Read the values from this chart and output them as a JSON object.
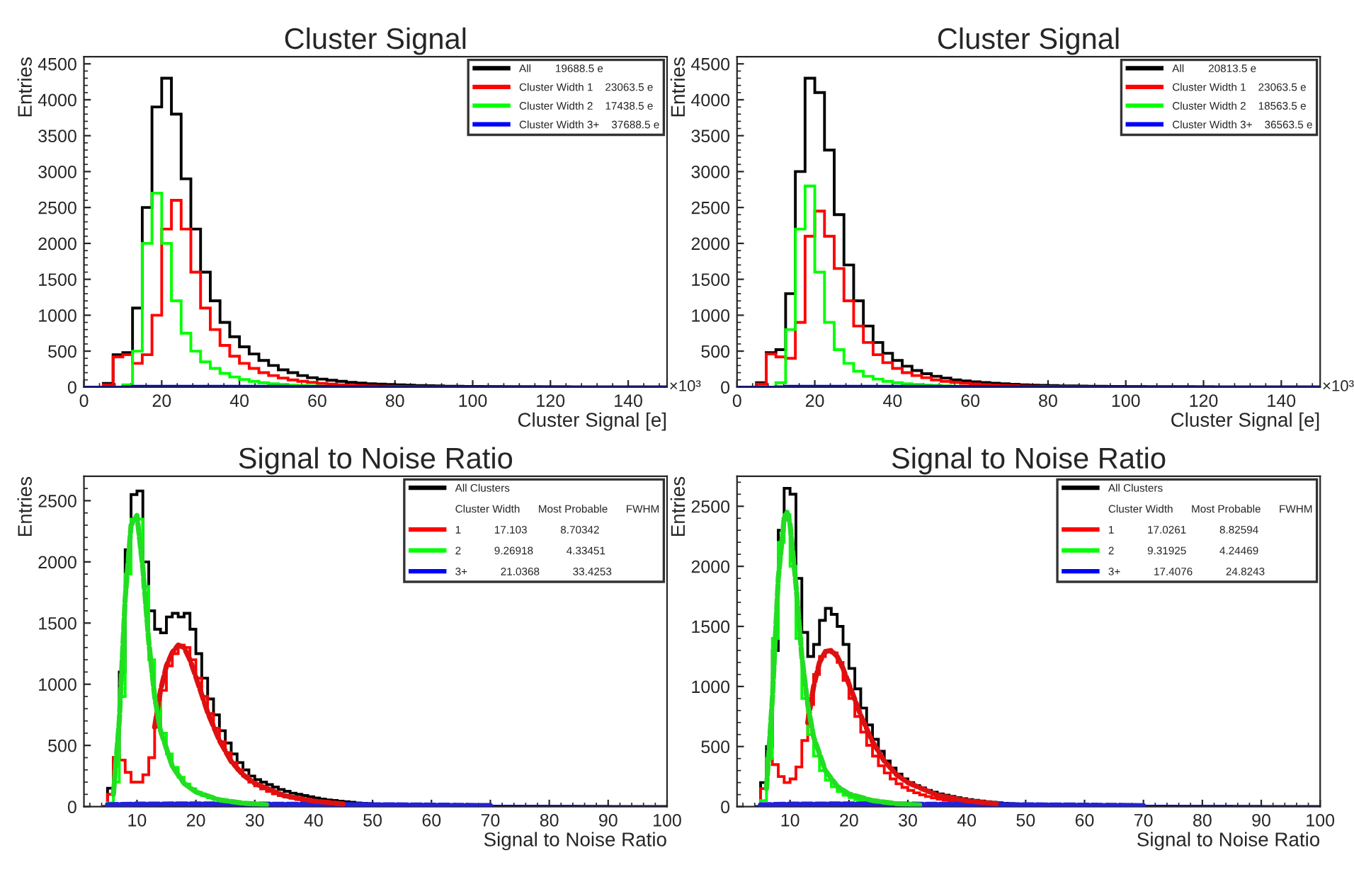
{
  "chart_data": [
    {
      "type": "histogram",
      "title": "Cluster Signal",
      "xlabel": "Cluster Signal [e]",
      "ylabel": "Entries",
      "annotations": [
        "×10³"
      ],
      "legend": "top right",
      "grid": false,
      "xlim": [
        0,
        150
      ],
      "xticks": [
        0,
        20,
        40,
        60,
        80,
        100,
        120,
        140
      ],
      "ylim": [
        0,
        4600
      ],
      "yticks": [
        0,
        500,
        1000,
        1500,
        2000,
        2500,
        3000,
        3500,
        4000,
        4500
      ],
      "bins": [
        0,
        2.5,
        5,
        7.5,
        10,
        12.5,
        15,
        17.5,
        20,
        22.5,
        25,
        27.5,
        30,
        32.5,
        35,
        37.5,
        40,
        42.5,
        45,
        47.5,
        50,
        52.5,
        55,
        57.5,
        60,
        62.5,
        65,
        67.5,
        70,
        72.5,
        75,
        77.5,
        80,
        82.5,
        85,
        87.5,
        90,
        92.5,
        95,
        97.5,
        100,
        102.5,
        105,
        107.5,
        110,
        112.5,
        115,
        117.5,
        120,
        122.5,
        125,
        127.5,
        130,
        132.5,
        135,
        137.5,
        140,
        142.5,
        145,
        147.5,
        150
      ],
      "series": [
        {
          "name": "All        19688.5 e",
          "color": "#000000",
          "values": [
            0,
            0,
            50,
            450,
            480,
            1100,
            2500,
            3900,
            4300,
            3800,
            2900,
            2200,
            1600,
            1200,
            900,
            700,
            560,
            460,
            370,
            300,
            240,
            200,
            160,
            130,
            110,
            95,
            80,
            65,
            55,
            45,
            40,
            35,
            30,
            25,
            20,
            18,
            15,
            12,
            10,
            9,
            8,
            7,
            6,
            5,
            5,
            4,
            4,
            3,
            3,
            3,
            2,
            2,
            2,
            2,
            1,
            1,
            1,
            1,
            1,
            1
          ]
        },
        {
          "name": "Cluster Width 1    23063.5 e",
          "color": "#ff0000",
          "values": [
            0,
            0,
            30,
            420,
            450,
            330,
            450,
            1000,
            2200,
            2600,
            2200,
            1600,
            1100,
            800,
            580,
            430,
            330,
            260,
            200,
            160,
            125,
            100,
            80,
            65,
            50,
            40,
            32,
            25,
            20,
            16,
            13,
            10,
            8,
            6,
            5,
            4,
            3,
            2,
            2,
            1,
            1,
            1,
            1,
            1,
            0,
            0,
            0,
            0,
            0,
            0,
            0,
            0,
            0,
            0,
            0,
            0,
            0,
            0,
            0,
            0
          ]
        },
        {
          "name": "Cluster Width 2    17438.5 e",
          "color": "#00ff00",
          "values": [
            0,
            0,
            0,
            0,
            30,
            500,
            2000,
            2700,
            2000,
            1200,
            750,
            500,
            350,
            260,
            190,
            140,
            105,
            80,
            60,
            45,
            35,
            26,
            20,
            15,
            12,
            9,
            7,
            5,
            4,
            3,
            2,
            2,
            1,
            1,
            1,
            0,
            0,
            0,
            0,
            0,
            0,
            0,
            0,
            0,
            0,
            0,
            0,
            0,
            0,
            0,
            0,
            0,
            0,
            0,
            0,
            0,
            0,
            0,
            0,
            0
          ]
        },
        {
          "name": "Cluster Width 3+    37688.5 e",
          "color": "#0000ff",
          "values": [
            0,
            0,
            0,
            0,
            5,
            10,
            12,
            12,
            12,
            12,
            12,
            12,
            12,
            12,
            12,
            12,
            11,
            11,
            10,
            10,
            10,
            9,
            9,
            8,
            8,
            8,
            7,
            7,
            6,
            6,
            6,
            5,
            5,
            5,
            5,
            4,
            4,
            4,
            4,
            4,
            3,
            3,
            3,
            3,
            3,
            3,
            3,
            2,
            2,
            2,
            2,
            2,
            2,
            2,
            2,
            2,
            2,
            2,
            2,
            2
          ]
        }
      ]
    },
    {
      "type": "histogram",
      "title": "Cluster Signal",
      "xlabel": "Cluster Signal [e]",
      "ylabel": "Entries",
      "annotations": [
        "×10³"
      ],
      "legend": "top right",
      "grid": false,
      "xlim": [
        0,
        150
      ],
      "xticks": [
        0,
        20,
        40,
        60,
        80,
        100,
        120,
        140
      ],
      "ylim": [
        0,
        4600
      ],
      "yticks": [
        0,
        500,
        1000,
        1500,
        2000,
        2500,
        3000,
        3500,
        4000,
        4500
      ],
      "bins": [
        0,
        2.5,
        5,
        7.5,
        10,
        12.5,
        15,
        17.5,
        20,
        22.5,
        25,
        27.5,
        30,
        32.5,
        35,
        37.5,
        40,
        42.5,
        45,
        47.5,
        50,
        52.5,
        55,
        57.5,
        60,
        62.5,
        65,
        67.5,
        70,
        72.5,
        75,
        77.5,
        80,
        82.5,
        85,
        87.5,
        90,
        92.5,
        95,
        97.5,
        100,
        102.5,
        105,
        107.5,
        110,
        112.5,
        115,
        117.5,
        120,
        122.5,
        125,
        127.5,
        130,
        132.5,
        135,
        137.5,
        140,
        142.5,
        145,
        147.5,
        150
      ],
      "series": [
        {
          "name": "All        20813.5 e",
          "color": "#000000",
          "values": [
            0,
            0,
            60,
            480,
            520,
            1300,
            3000,
            4300,
            4100,
            3300,
            2400,
            1700,
            1200,
            850,
            620,
            470,
            370,
            290,
            230,
            185,
            150,
            125,
            100,
            85,
            72,
            62,
            53,
            45,
            38,
            32,
            27,
            23,
            20,
            17,
            15,
            13,
            11,
            10,
            9,
            8,
            7,
            6,
            5,
            5,
            4,
            4,
            3,
            3,
            3,
            2,
            2,
            2,
            2,
            2,
            1,
            1,
            1,
            1,
            1,
            1
          ]
        },
        {
          "name": "Cluster Width 1    23063.5 e",
          "color": "#ff0000",
          "values": [
            0,
            0,
            40,
            460,
            420,
            400,
            900,
            2100,
            2450,
            2100,
            1650,
            1200,
            850,
            620,
            450,
            340,
            260,
            200,
            160,
            130,
            100,
            80,
            65,
            52,
            42,
            34,
            27,
            22,
            18,
            14,
            11,
            9,
            7,
            5,
            4,
            3,
            2,
            2,
            1,
            1,
            0,
            0,
            0,
            0,
            0,
            0,
            0,
            0,
            0,
            0,
            0,
            0,
            0,
            0,
            0,
            0,
            0,
            0,
            0,
            0
          ]
        },
        {
          "name": "Cluster Width 2    18563.5 e",
          "color": "#00ff00",
          "values": [
            0,
            0,
            0,
            0,
            60,
            800,
            2200,
            2800,
            1600,
            900,
            520,
            330,
            220,
            150,
            110,
            80,
            60,
            45,
            35,
            27,
            20,
            15,
            11,
            8,
            6,
            5,
            4,
            3,
            2,
            2,
            1,
            1,
            1,
            1,
            1,
            0,
            0,
            0,
            0,
            0,
            0,
            0,
            0,
            0,
            0,
            0,
            0,
            0,
            0,
            0,
            0,
            0,
            0,
            0,
            0,
            0,
            0,
            0,
            0,
            0
          ]
        },
        {
          "name": "Cluster Width 3+    36563.5 e",
          "color": "#0000ff",
          "values": [
            0,
            0,
            0,
            0,
            5,
            10,
            12,
            12,
            12,
            12,
            12,
            12,
            12,
            12,
            12,
            12,
            11,
            11,
            10,
            10,
            10,
            9,
            9,
            8,
            8,
            8,
            7,
            7,
            6,
            6,
            6,
            5,
            5,
            5,
            5,
            4,
            4,
            4,
            4,
            4,
            3,
            3,
            3,
            3,
            3,
            3,
            3,
            2,
            2,
            2,
            2,
            2,
            2,
            2,
            2,
            2,
            2,
            2,
            2,
            2
          ]
        }
      ]
    },
    {
      "type": "histogram",
      "title": "Signal to Noise Ratio",
      "xlabel": "Signal to Noise Ratio",
      "ylabel": "Entries",
      "legend_title": "Cluster Width      Most Probable      FWHM",
      "legend": "top right",
      "grid": false,
      "xlim": [
        1,
        100
      ],
      "xticks": [
        10,
        20,
        30,
        40,
        50,
        60,
        70,
        80,
        90,
        100
      ],
      "ylim": [
        0,
        2700
      ],
      "yticks": [
        0,
        500,
        1000,
        1500,
        2000,
        2500
      ],
      "bins": [
        4,
        5,
        6,
        7,
        8,
        9,
        10,
        11,
        12,
        13,
        14,
        15,
        16,
        17,
        18,
        19,
        20,
        21,
        22,
        23,
        24,
        25,
        26,
        27,
        28,
        29,
        30,
        31,
        32,
        33,
        34,
        35,
        36,
        37,
        38,
        39,
        40,
        41,
        42,
        43,
        44,
        45,
        46,
        47,
        48,
        49,
        50,
        55,
        60,
        65,
        70,
        75,
        80,
        85,
        90,
        95,
        100
      ],
      "series": [
        {
          "name": "All Clusters",
          "color": "#000000",
          "values": [
            0,
            150,
            400,
            1100,
            2100,
            2550,
            2580,
            2000,
            1600,
            1450,
            1420,
            1550,
            1580,
            1550,
            1580,
            1450,
            1250,
            1050,
            880,
            750,
            620,
            520,
            430,
            360,
            300,
            250,
            220,
            200,
            180,
            160,
            140,
            125,
            110,
            100,
            90,
            80,
            70,
            62,
            55,
            50,
            45,
            40,
            35,
            30,
            27,
            24,
            18,
            12,
            8,
            5,
            3,
            2,
            1,
            1,
            0,
            0
          ]
        },
        {
          "name": "1           17.103           8.70342",
          "color": "#ff0000",
          "values": [
            0,
            100,
            400,
            380,
            280,
            200,
            200,
            260,
            400,
            650,
            950,
            1150,
            1250,
            1320,
            1300,
            1200,
            1050,
            900,
            760,
            640,
            530,
            440,
            360,
            300,
            250,
            200,
            170,
            145,
            125,
            105,
            90,
            78,
            68,
            58,
            50,
            44,
            38,
            33,
            29,
            25,
            22,
            19,
            17,
            15,
            13,
            11,
            8,
            5,
            3,
            2,
            1,
            1,
            0,
            0,
            0,
            0
          ]
        },
        {
          "name": "2           9.26918           4.33451",
          "color": "#00ff00",
          "values": [
            0,
            30,
            200,
            900,
            1900,
            2350,
            2350,
            1800,
            1200,
            850,
            600,
            430,
            320,
            240,
            185,
            145,
            115,
            90,
            72,
            58,
            47,
            38,
            31,
            25,
            20,
            16,
            13,
            11,
            9,
            7,
            6,
            5,
            4,
            3,
            3,
            2,
            2,
            1,
            1,
            1,
            1,
            1,
            1,
            1,
            1,
            1,
            1,
            0,
            0,
            0,
            0,
            0,
            0,
            0,
            0,
            0
          ]
        },
        {
          "name": "3+           21.0368           33.4253",
          "color": "#0000ff",
          "values": [
            0,
            5,
            15,
            18,
            20,
            20,
            20,
            20,
            20,
            20,
            20,
            20,
            20,
            20,
            20,
            20,
            20,
            20,
            20,
            20,
            20,
            20,
            20,
            20,
            20,
            20,
            20,
            20,
            20,
            20,
            18,
            18,
            18,
            18,
            18,
            16,
            16,
            16,
            16,
            16,
            15,
            15,
            15,
            15,
            15,
            14,
            12,
            10,
            8,
            6,
            4,
            3,
            2,
            1,
            0,
            0
          ]
        },
        {
          "type": "line",
          "line_style": "dashed",
          "color": "#22dd22",
          "x": [
            6,
            7,
            8,
            9,
            10,
            11,
            12,
            13,
            14,
            16,
            18,
            20,
            24,
            28,
            32
          ],
          "values": [
            100,
            700,
            1700,
            2300,
            2380,
            1950,
            1350,
            900,
            620,
            330,
            190,
            120,
            55,
            28,
            15
          ]
        },
        {
          "type": "line",
          "line_style": "dashed",
          "color": "#dd1111",
          "x": [
            13,
            14,
            15,
            16,
            17,
            18,
            19,
            20,
            22,
            24,
            26,
            28,
            30,
            35,
            40,
            45
          ],
          "values": [
            650,
            950,
            1150,
            1260,
            1320,
            1300,
            1200,
            1060,
            770,
            540,
            370,
            260,
            190,
            90,
            45,
            22
          ]
        },
        {
          "type": "line",
          "line_style": "dashed",
          "color": "#2222dd",
          "x": [
            5,
            10,
            20,
            30,
            40,
            50,
            60,
            70
          ],
          "values": [
            15,
            20,
            22,
            20,
            18,
            15,
            12,
            8
          ]
        }
      ]
    },
    {
      "type": "histogram",
      "title": "Signal to Noise Ratio",
      "xlabel": "Signal to Noise Ratio",
      "ylabel": "Entries",
      "legend_title": "Cluster Width      Most Probable      FWHM",
      "legend": "top right",
      "grid": false,
      "xlim": [
        1,
        100
      ],
      "xticks": [
        10,
        20,
        30,
        40,
        50,
        60,
        70,
        80,
        90,
        100
      ],
      "ylim": [
        0,
        2750
      ],
      "yticks": [
        0,
        500,
        1000,
        1500,
        2000,
        2500
      ],
      "bins": [
        4,
        5,
        6,
        7,
        8,
        9,
        10,
        11,
        12,
        13,
        14,
        15,
        16,
        17,
        18,
        19,
        20,
        21,
        22,
        23,
        24,
        25,
        26,
        27,
        28,
        29,
        30,
        31,
        32,
        33,
        34,
        35,
        36,
        37,
        38,
        39,
        40,
        41,
        42,
        43,
        44,
        45,
        46,
        47,
        48,
        49,
        50,
        55,
        60,
        65,
        70,
        75,
        80,
        85,
        90,
        95,
        100
      ],
      "series": [
        {
          "name": "All Clusters",
          "color": "#000000",
          "values": [
            0,
            200,
            500,
            1300,
            2300,
            2650,
            2600,
            1900,
            1450,
            1250,
            1350,
            1550,
            1650,
            1600,
            1500,
            1350,
            1150,
            980,
            820,
            680,
            560,
            460,
            380,
            320,
            270,
            230,
            200,
            175,
            155,
            135,
            120,
            105,
            95,
            85,
            75,
            66,
            58,
            52,
            46,
            41,
            36,
            32,
            28,
            25,
            22,
            20,
            16,
            11,
            7,
            5,
            3,
            2,
            1,
            1,
            0,
            0
          ]
        },
        {
          "name": "1           17.0261           8.82594",
          "color": "#ff0000",
          "values": [
            0,
            150,
            400,
            350,
            250,
            200,
            230,
            330,
            550,
            850,
            1100,
            1250,
            1300,
            1280,
            1200,
            1050,
            900,
            750,
            620,
            510,
            420,
            340,
            280,
            230,
            190,
            160,
            135,
            115,
            98,
            84,
            72,
            62,
            54,
            47,
            41,
            36,
            31,
            27,
            24,
            21,
            18,
            16,
            14,
            12,
            11,
            10,
            7,
            4,
            3,
            2,
            1,
            1,
            0,
            0,
            0,
            0
          ]
        },
        {
          "name": "2           9.31925           4.24469",
          "color": "#00ff00",
          "values": [
            0,
            50,
            400,
            1400,
            2200,
            2430,
            2000,
            1400,
            900,
            600,
            420,
            300,
            220,
            165,
            125,
            95,
            75,
            58,
            46,
            36,
            29,
            23,
            18,
            14,
            11,
            9,
            7,
            6,
            5,
            4,
            3,
            3,
            2,
            2,
            2,
            1,
            1,
            1,
            1,
            1,
            1,
            1,
            1,
            1,
            1,
            1,
            0,
            0,
            0,
            0,
            0,
            0,
            0,
            0,
            0,
            0
          ]
        },
        {
          "name": "3+           17.4076           24.8243",
          "color": "#0000ff",
          "values": [
            0,
            5,
            15,
            18,
            20,
            20,
            20,
            20,
            20,
            20,
            20,
            20,
            20,
            20,
            20,
            20,
            20,
            20,
            20,
            20,
            20,
            20,
            20,
            20,
            20,
            20,
            20,
            20,
            20,
            20,
            18,
            18,
            18,
            18,
            18,
            16,
            16,
            16,
            16,
            16,
            15,
            15,
            15,
            15,
            15,
            14,
            12,
            10,
            8,
            6,
            4,
            3,
            2,
            1,
            0,
            0
          ]
        },
        {
          "type": "line",
          "line_style": "dashed",
          "color": "#22dd22",
          "x": [
            6,
            7,
            8,
            9,
            9.5,
            10,
            11,
            12,
            13,
            14,
            16,
            18,
            20,
            24,
            28,
            32
          ],
          "values": [
            150,
            900,
            1900,
            2400,
            2450,
            2350,
            1850,
            1250,
            850,
            580,
            300,
            170,
            105,
            50,
            25,
            13
          ]
        },
        {
          "type": "line",
          "line_style": "dashed",
          "color": "#dd1111",
          "x": [
            13,
            14,
            15,
            16,
            17,
            18,
            19,
            20,
            22,
            24,
            26,
            28,
            30,
            35,
            40,
            45
          ],
          "values": [
            700,
            1000,
            1200,
            1290,
            1300,
            1250,
            1150,
            1020,
            760,
            540,
            380,
            270,
            200,
            95,
            48,
            24
          ]
        },
        {
          "type": "line",
          "line_style": "dashed",
          "color": "#2222dd",
          "x": [
            5,
            10,
            20,
            30,
            40,
            50,
            60,
            70
          ],
          "values": [
            15,
            20,
            22,
            20,
            18,
            15,
            12,
            8
          ]
        }
      ]
    }
  ]
}
